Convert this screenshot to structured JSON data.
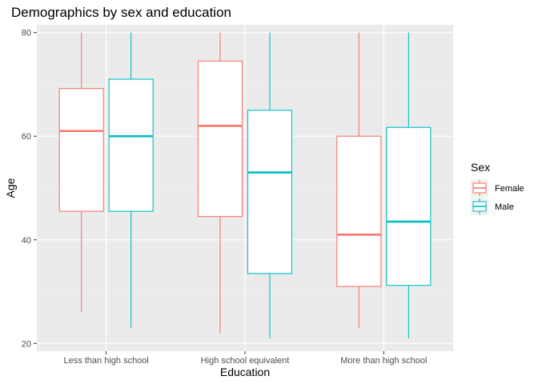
{
  "chart_data": {
    "type": "boxplot",
    "title": "Demographics by sex and education",
    "xlabel": "Education",
    "ylabel": "Age",
    "categories": [
      "Less than high school",
      "High school equivalent",
      "More than high school"
    ],
    "ylim": [
      18.5,
      81.5
    ],
    "yticks": [
      20,
      40,
      60,
      80
    ],
    "grid": true,
    "legend": {
      "title": "Sex",
      "position": "right"
    },
    "series": [
      {
        "name": "Female",
        "color": "#F8766D",
        "boxes": [
          {
            "min": 26,
            "q1": 45.5,
            "median": 61,
            "q3": 69.2,
            "max": 80
          },
          {
            "min": 22,
            "q1": 44.5,
            "median": 62,
            "q3": 74.5,
            "max": 80
          },
          {
            "min": 23,
            "q1": 31,
            "median": 41,
            "q3": 60,
            "max": 80
          }
        ]
      },
      {
        "name": "Male",
        "color": "#00BFC4",
        "boxes": [
          {
            "min": 23,
            "q1": 45.5,
            "median": 60,
            "q3": 71,
            "max": 80
          },
          {
            "min": 21,
            "q1": 33.5,
            "median": 53,
            "q3": 65,
            "max": 80
          },
          {
            "min": 21,
            "q1": 31.2,
            "median": 43.5,
            "q3": 61.7,
            "max": 80
          }
        ]
      }
    ]
  }
}
